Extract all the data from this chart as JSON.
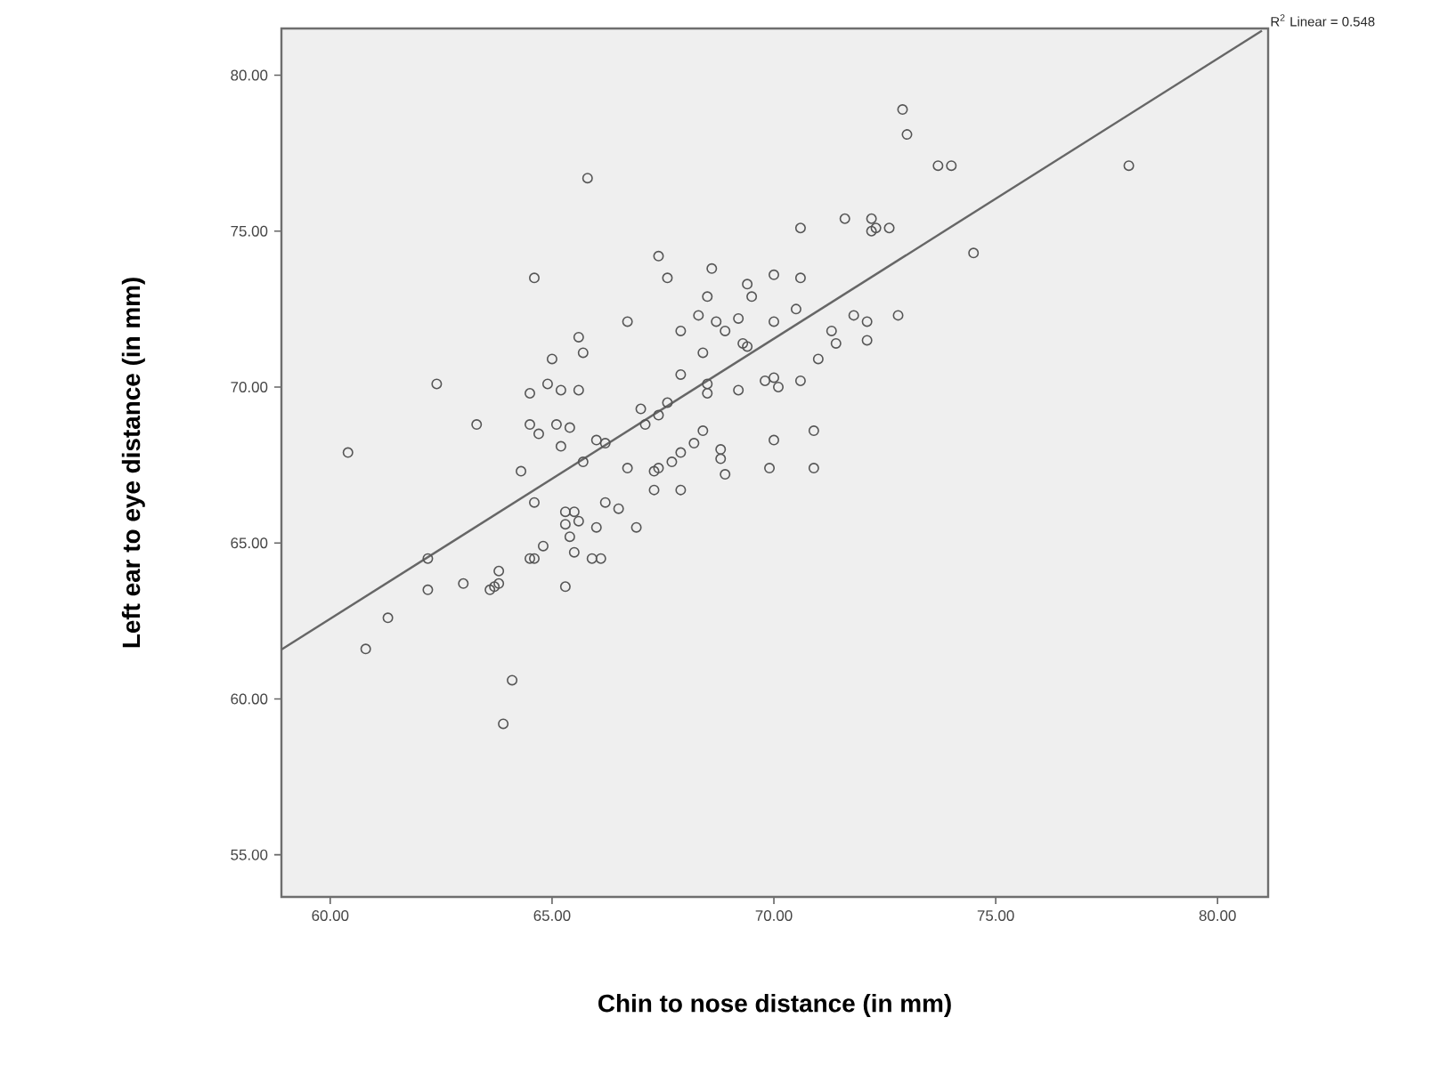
{
  "chart_data": {
    "type": "scatter",
    "xlabel": "Chin to nose distance (in mm)",
    "ylabel": "Left ear to eye distance (in mm)",
    "annotations": [
      "R$^{2}$ Linear = 0.548"
    ],
    "xlim": [
      58.9,
      81.14
    ],
    "ylim": [
      53.65,
      81.5
    ],
    "xticks": [
      {
        "value": 60,
        "label": "60.00"
      },
      {
        "value": 65,
        "label": "65.00"
      },
      {
        "value": 70,
        "label": "70.00"
      },
      {
        "value": 75,
        "label": "75.00"
      },
      {
        "value": 80,
        "label": "80.00"
      }
    ],
    "yticks": [
      {
        "value": 55,
        "label": "55.00"
      },
      {
        "value": 60,
        "label": "60.00"
      },
      {
        "value": 65,
        "label": "65.00"
      },
      {
        "value": 70,
        "label": "70.00"
      },
      {
        "value": 75,
        "label": "75.00"
      },
      {
        "value": 80,
        "label": "80.00"
      }
    ],
    "series": [
      {
        "marker": "circle",
        "color": "#555555",
        "x": [
          65.8,
          70.6,
          71.6,
          67.4,
          64.6,
          67.6,
          68.6,
          69.4,
          69.5,
          70.0,
          70.6,
          68.5,
          68.3,
          68.7,
          68.9,
          69.2,
          70.0,
          70.5,
          66.7,
          67.9,
          65.6,
          65.7,
          65.0,
          68.4,
          69.3,
          69.4,
          71.3,
          71.4,
          71.0,
          67.9,
          62.4,
          64.5,
          64.9,
          65.2,
          65.6,
          68.5,
          68.5,
          69.2,
          69.8,
          70.0,
          70.1,
          70.6,
          67.6,
          67.0,
          67.4,
          63.3,
          64.5,
          64.7,
          65.1,
          65.4,
          65.2,
          66.0,
          66.2,
          65.7,
          67.1,
          68.4,
          68.2,
          67.9,
          67.7,
          67.4,
          67.3,
          67.3,
          67.9,
          68.8,
          68.8,
          68.9,
          70.0,
          69.9,
          70.9,
          70.9,
          60.4,
          64.3,
          66.7,
          64.6,
          65.3,
          65.5,
          65.3,
          65.6,
          65.4,
          65.5,
          66.0,
          66.2,
          66.5,
          66.9,
          64.8,
          64.5,
          64.6,
          65.9,
          66.1,
          62.2,
          62.2,
          63.0,
          63.6,
          63.7,
          63.8,
          63.8,
          65.3,
          61.3,
          60.8,
          64.1,
          63.9,
          72.9,
          73.0,
          73.7,
          74.0,
          78.0,
          72.2,
          72.2,
          72.3,
          72.6,
          74.5,
          71.8,
          72.1,
          72.8,
          72.1
        ],
        "values": [
          76.7,
          75.1,
          75.4,
          74.2,
          73.5,
          73.5,
          73.8,
          73.3,
          72.9,
          73.6,
          73.5,
          72.9,
          72.3,
          72.1,
          71.8,
          72.2,
          72.1,
          72.5,
          72.1,
          71.8,
          71.6,
          71.1,
          70.9,
          71.1,
          71.4,
          71.3,
          71.8,
          71.4,
          70.9,
          70.4,
          70.1,
          69.8,
          70.1,
          69.9,
          69.9,
          70.1,
          69.8,
          69.9,
          70.2,
          70.3,
          70.0,
          70.2,
          69.5,
          69.3,
          69.1,
          68.8,
          68.8,
          68.5,
          68.8,
          68.7,
          68.1,
          68.3,
          68.2,
          67.6,
          68.8,
          68.6,
          68.2,
          67.9,
          67.6,
          67.4,
          67.3,
          66.7,
          66.7,
          68.0,
          67.7,
          67.2,
          68.3,
          67.4,
          68.6,
          67.4,
          67.9,
          67.3,
          67.4,
          66.3,
          66.0,
          66.0,
          65.6,
          65.7,
          65.2,
          64.7,
          65.5,
          66.3,
          66.1,
          65.5,
          64.9,
          64.5,
          64.5,
          64.5,
          64.5,
          64.5,
          63.5,
          63.7,
          63.5,
          63.6,
          63.7,
          64.1,
          63.6,
          62.6,
          61.6,
          60.6,
          59.2,
          78.9,
          78.1,
          77.1,
          77.1,
          77.1,
          75.4,
          75.0,
          75.1,
          75.1,
          74.3,
          72.3,
          72.1,
          72.3,
          71.5
        ]
      },
      {
        "type": "line",
        "color": "#666666",
        "x": [
          58.9,
          81.0
        ],
        "values": [
          61.58,
          81.43
        ]
      }
    ]
  }
}
